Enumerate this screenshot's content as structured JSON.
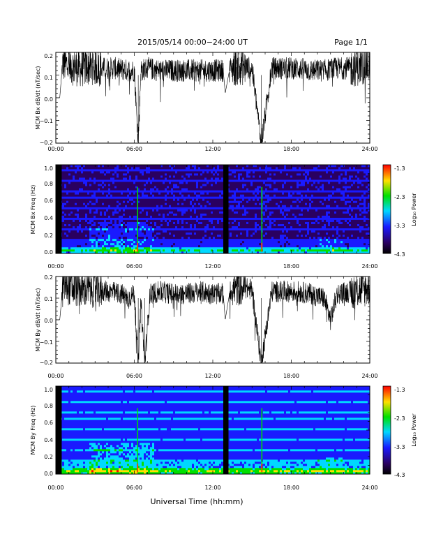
{
  "header": {
    "title": "2015/05/14  00:00−24:00 UT",
    "page": "Page 1/1"
  },
  "footer": {
    "xlabel": "Universal Time (hh:mm)"
  },
  "colors": {
    "trace": "#000000",
    "colormap": [
      "#000000",
      "#2a0060",
      "#1a1aff",
      "#00d8ff",
      "#00e000",
      "#ffe000",
      "#ff0000"
    ]
  },
  "chart_data": [
    {
      "type": "line",
      "ylabel": "MCM Bx dB/dt (nT/sec)",
      "xlim": [
        0,
        24
      ],
      "ylim": [
        -0.2,
        0.2
      ],
      "x_ticks": [
        "00:00",
        "06:00",
        "12:00",
        "18:00",
        "24:00"
      ],
      "y_ticks": [
        "0.2",
        "0.1",
        "0.0",
        "−0.1",
        "−0.2"
      ],
      "series": [
        {
          "x": [
            0,
            0.3,
            0.5,
            0.6,
            1.0,
            2.0,
            2.8,
            3.5,
            4.5,
            5.5,
            6.0,
            6.3,
            6.5,
            7.0,
            8.0,
            9.0,
            10.0,
            11.0,
            12.0,
            12.8,
            12.95,
            13.3,
            14.0,
            15.0,
            15.7,
            16.5,
            17.5,
            18.5,
            19.5,
            20.5,
            21.5,
            22.5,
            23.5,
            24.0
          ],
          "y": [
            0.0,
            0.0,
            0.14,
            0.15,
            0.14,
            0.13,
            0.14,
            0.13,
            0.13,
            0.12,
            0.12,
            -0.2,
            0.12,
            0.13,
            0.12,
            0.12,
            0.12,
            0.12,
            0.12,
            0.12,
            0.02,
            0.13,
            0.14,
            0.13,
            -0.2,
            0.13,
            0.13,
            0.13,
            0.12,
            0.12,
            0.13,
            0.13,
            0.14,
            0.15
          ]
        }
      ]
    },
    {
      "type": "heatmap",
      "ylabel": "MCM Bx Freq (Hz)",
      "xlim": [
        0,
        24
      ],
      "ylim": [
        0,
        1.0
      ],
      "x_ticks": [
        "00:00",
        "06:00",
        "12:00",
        "18:00",
        "24:00"
      ],
      "y_ticks": [
        "1.0",
        "0.8",
        "0.6",
        "0.4",
        "0.2",
        "0.0"
      ],
      "colorbar": {
        "label": "Log₁₀ Power",
        "ticks": [
          "-1.3",
          "-2.3",
          "-3.3",
          "-4.3"
        ],
        "range": [
          -4.3,
          -1.3
        ]
      }
    },
    {
      "type": "line",
      "ylabel": "MCM By dB/dt (nT/sec)",
      "xlim": [
        0,
        24
      ],
      "ylim": [
        -0.2,
        0.2
      ],
      "x_ticks": [
        "00:00",
        "06:00",
        "12:00",
        "18:00",
        "24:00"
      ],
      "y_ticks": [
        "0.2",
        "0.1",
        "0.0",
        "−0.1",
        "−0.2"
      ],
      "series": [
        {
          "x": [
            0,
            0.3,
            0.5,
            0.6,
            1.0,
            2.0,
            3.0,
            4.0,
            5.0,
            5.5,
            6.0,
            6.3,
            6.5,
            6.8,
            7.2,
            8.0,
            9.0,
            10.0,
            11.0,
            12.0,
            12.8,
            12.95,
            13.3,
            14.0,
            15.0,
            15.7,
            16.5,
            17.5,
            18.5,
            19.5,
            20.5,
            21.0,
            21.5,
            22.5,
            23.5,
            24.0
          ],
          "y": [
            0.0,
            0.0,
            0.13,
            0.16,
            0.15,
            0.14,
            0.14,
            0.13,
            0.12,
            0.1,
            0.12,
            -0.2,
            0.08,
            -0.2,
            0.12,
            0.13,
            0.12,
            0.12,
            0.13,
            0.12,
            0.12,
            0.0,
            0.13,
            0.15,
            0.14,
            -0.2,
            0.13,
            0.13,
            0.13,
            0.12,
            0.1,
            0.0,
            0.12,
            0.13,
            0.14,
            0.15
          ]
        }
      ]
    },
    {
      "type": "heatmap",
      "ylabel": "MCM By Freq (Hz)",
      "xlim": [
        0,
        24
      ],
      "ylim": [
        0,
        1.0
      ],
      "x_ticks": [
        "00:00",
        "06:00",
        "12:00",
        "18:00",
        "24:00"
      ],
      "y_ticks": [
        "1.0",
        "0.8",
        "0.6",
        "0.4",
        "0.2",
        "0.0"
      ],
      "colorbar": {
        "label": "Log₁₀ Power",
        "ticks": [
          "-1.3",
          "-2.3",
          "-3.3",
          "-4.3"
        ],
        "range": [
          -4.3,
          -1.3
        ]
      }
    }
  ]
}
